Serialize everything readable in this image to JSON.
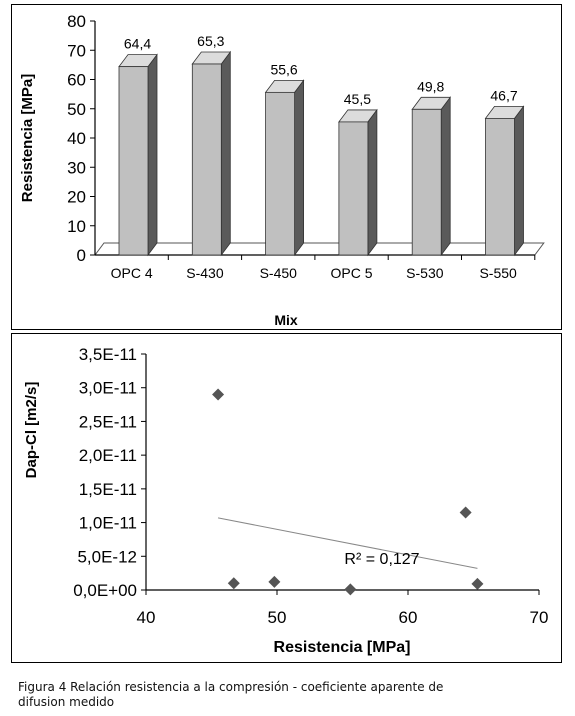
{
  "chart_data": [
    {
      "type": "bar",
      "categories": [
        "OPC 4",
        "S-430",
        "S-450",
        "OPC 5",
        "S-530",
        "S-550"
      ],
      "values": [
        64.4,
        65.3,
        55.6,
        45.5,
        49.8,
        46.7
      ],
      "data_labels": [
        "64,4",
        "65,3",
        "55,6",
        "45,5",
        "49,8",
        "46,7"
      ],
      "title": "",
      "xlabel": "Mix",
      "ylabel": "Resistencia [MPa]",
      "ylim": [
        0,
        80
      ],
      "yticks": [
        "0",
        "10",
        "20",
        "30",
        "40",
        "50",
        "60",
        "70",
        "80"
      ],
      "grid": false,
      "bar_color": "#c0c0c0",
      "bar_side_color": "#5a5a5a"
    },
    {
      "type": "scatter",
      "x": [
        45.5,
        46.7,
        49.8,
        55.6,
        64.4,
        65.3
      ],
      "y": [
        2.9e-11,
        1e-12,
        1.2e-12,
        1e-13,
        1.15e-11,
        9e-13
      ],
      "trendline": {
        "x": [
          45.5,
          65.3
        ],
        "y": [
          1.07e-11,
          3.2e-12
        ]
      },
      "annotation": "R² = 0,127",
      "title": "",
      "xlabel": "Resistencia [MPa]",
      "ylabel": "Dap-Cl [m2/s]",
      "xlim": [
        40,
        70
      ],
      "ylim": [
        0,
        3.5e-11
      ],
      "xticks": [
        "40",
        "50",
        "60",
        "70"
      ],
      "yticks": [
        "0,0E+00",
        "5,0E-12",
        "1,0E-11",
        "1,5E-11",
        "2,0E-11",
        "2,5E-11",
        "3,0E-11",
        "3,5E-11"
      ],
      "grid": false,
      "marker_color": "#555555"
    }
  ],
  "caption": {
    "line1": "Figura 4 Relación resistencia a la compresión - coeficiente aparente de",
    "line2": "difusion medido"
  }
}
